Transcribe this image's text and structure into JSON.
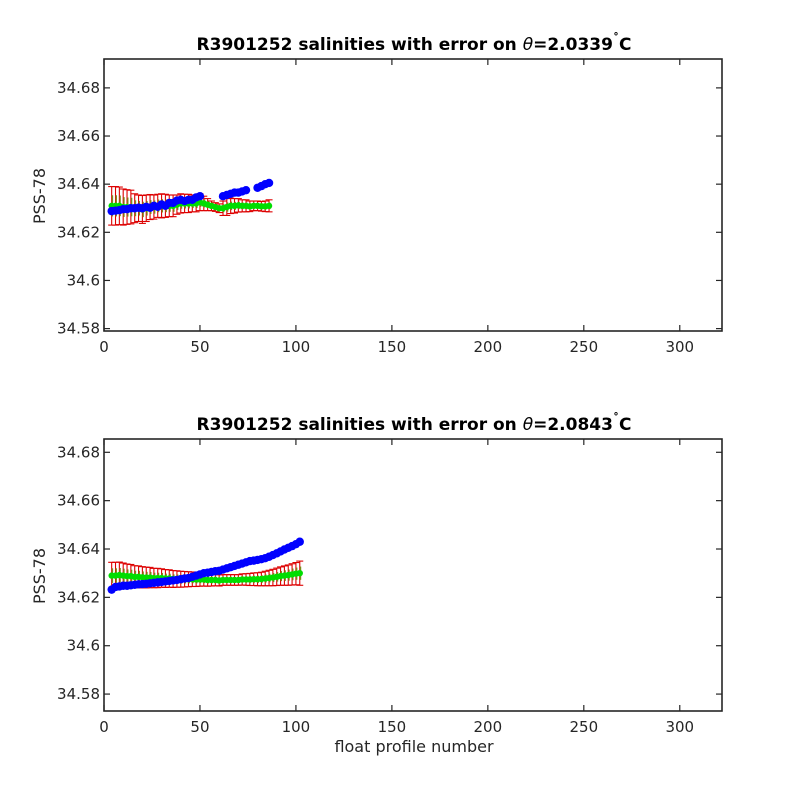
{
  "chart_data": [
    {
      "type": "scatter",
      "title": "R3901252 salinities with error on θ=2.0339˚C",
      "title_parts": {
        "prefix": "R3901252 salinities with error on ",
        "symbol": "θ",
        "value": "=2.0339",
        "degree": "˚",
        "unit": "C"
      },
      "ylabel": "PSS-78",
      "xlabel": "",
      "xlim": [
        0,
        322
      ],
      "ylim": [
        34.579,
        34.692
      ],
      "xticks": [
        0,
        50,
        100,
        150,
        200,
        250,
        300
      ],
      "xtick_labels": [
        "0",
        "50",
        "100",
        "150",
        "200",
        "250",
        "300"
      ],
      "yticks": [
        34.58,
        34.6,
        34.62,
        34.64,
        34.66,
        34.68
      ],
      "ytick_labels": [
        "34.58",
        "34.6",
        "34.62",
        "34.64",
        "34.66",
        "34.68"
      ],
      "colors": {
        "measured": "#0000ff",
        "mapped": "#00dd00",
        "error": "#dd0000",
        "error_inner": "#7a8c1a"
      },
      "series": [
        {
          "role": "measured",
          "x": [
            4,
            6,
            8,
            10,
            12,
            14,
            16,
            18,
            20,
            22,
            24,
            26,
            28,
            30,
            32,
            34,
            36,
            38,
            40,
            42,
            44,
            46,
            48,
            50,
            62,
            64,
            66,
            68,
            70,
            72,
            74,
            80,
            82,
            84,
            86
          ],
          "y": [
            34.6288,
            34.629,
            34.6292,
            34.6296,
            34.6296,
            34.63,
            34.63,
            34.6302,
            34.63,
            34.6306,
            34.6302,
            34.631,
            34.6306,
            34.6316,
            34.631,
            34.6322,
            34.6322,
            34.6332,
            34.6335,
            34.633,
            34.6335,
            34.6335,
            34.6345,
            34.635,
            34.635,
            34.6355,
            34.636,
            34.6365,
            34.6365,
            34.637,
            34.6375,
            34.6385,
            34.6392,
            34.64,
            34.6405
          ]
        },
        {
          "role": "mapped",
          "x": [
            4,
            6,
            8,
            10,
            12,
            14,
            16,
            18,
            20,
            22,
            24,
            26,
            28,
            30,
            32,
            34,
            36,
            38,
            40,
            42,
            44,
            46,
            48,
            50,
            52,
            54,
            56,
            58,
            60,
            62,
            64,
            66,
            68,
            70,
            72,
            74,
            76,
            78,
            80,
            82,
            84,
            86
          ],
          "y": [
            34.631,
            34.631,
            34.631,
            34.6305,
            34.6305,
            34.6305,
            34.63,
            34.63,
            34.6295,
            34.63,
            34.6305,
            34.6305,
            34.631,
            34.631,
            34.631,
            34.631,
            34.631,
            34.6315,
            34.632,
            34.632,
            34.632,
            34.632,
            34.632,
            34.6325,
            34.632,
            34.6315,
            34.631,
            34.6305,
            34.63,
            34.63,
            34.6305,
            34.631,
            34.631,
            34.6312,
            34.631,
            34.631,
            34.6308,
            34.631,
            34.631,
            34.6308,
            34.6308,
            34.631
          ],
          "err": [
            0.008,
            0.008,
            0.0078,
            0.0075,
            0.0072,
            0.007,
            0.006,
            0.0055,
            0.0058,
            0.0055,
            0.0052,
            0.005,
            0.0048,
            0.005,
            0.0048,
            0.0045,
            0.0045,
            0.004,
            0.004,
            0.0038,
            0.0038,
            0.0035,
            0.0035,
            0.0035,
            0.003,
            0.0025,
            0.002,
            0.0018,
            0.0018,
            0.003,
            0.0035,
            0.0032,
            0.003,
            0.0028,
            0.0025,
            0.0025,
            0.0022,
            0.002,
            0.002,
            0.002,
            0.0022,
            0.0025
          ]
        }
      ]
    },
    {
      "type": "scatter",
      "title": "R3901252 salinities with error on θ=2.0843˚C",
      "title_parts": {
        "prefix": "R3901252 salinities with error on ",
        "symbol": "θ",
        "value": "=2.0843",
        "degree": "˚",
        "unit": "C"
      },
      "ylabel": "PSS-78",
      "xlabel": "float profile number",
      "xlim": [
        0,
        322
      ],
      "ylim": [
        34.573,
        34.6855
      ],
      "xticks": [
        0,
        50,
        100,
        150,
        200,
        250,
        300
      ],
      "xtick_labels": [
        "0",
        "50",
        "100",
        "150",
        "200",
        "250",
        "300"
      ],
      "yticks": [
        34.58,
        34.6,
        34.62,
        34.64,
        34.66,
        34.68
      ],
      "ytick_labels": [
        "34.58",
        "34.6",
        "34.62",
        "34.64",
        "34.66",
        "34.68"
      ],
      "colors": {
        "measured": "#0000ff",
        "mapped": "#00dd00",
        "error": "#dd0000",
        "error_inner": "#7a8c1a"
      },
      "series": [
        {
          "role": "measured",
          "x": [
            4,
            6,
            8,
            10,
            12,
            14,
            16,
            18,
            20,
            22,
            24,
            26,
            28,
            30,
            32,
            34,
            36,
            38,
            40,
            42,
            44,
            46,
            48,
            50,
            52,
            54,
            56,
            58,
            60,
            62,
            64,
            66,
            68,
            70,
            72,
            74,
            76,
            78,
            80,
            82,
            84,
            86,
            88,
            90,
            92,
            94,
            96,
            98,
            100,
            102
          ],
          "y": [
            34.6232,
            34.6243,
            34.6245,
            34.6248,
            34.6248,
            34.625,
            34.6252,
            34.6254,
            34.6255,
            34.6256,
            34.6258,
            34.626,
            34.6262,
            34.6264,
            34.6266,
            34.6268,
            34.627,
            34.6272,
            34.6275,
            34.6278,
            34.628,
            34.6285,
            34.629,
            34.6295,
            34.63,
            34.6302,
            34.6305,
            34.6308,
            34.631,
            34.6315,
            34.632,
            34.6325,
            34.633,
            34.6335,
            34.634,
            34.6345,
            34.635,
            34.6352,
            34.6355,
            34.6358,
            34.6362,
            34.6368,
            34.6375,
            34.6382,
            34.639,
            34.6398,
            34.6405,
            34.6412,
            34.642,
            34.643
          ]
        },
        {
          "role": "mapped",
          "x": [
            4,
            6,
            8,
            10,
            12,
            14,
            16,
            18,
            20,
            22,
            24,
            26,
            28,
            30,
            32,
            34,
            36,
            38,
            40,
            42,
            44,
            46,
            48,
            50,
            52,
            54,
            56,
            58,
            60,
            62,
            64,
            66,
            68,
            70,
            72,
            74,
            76,
            78,
            80,
            82,
            84,
            86,
            88,
            90,
            92,
            94,
            96,
            98,
            100,
            102
          ],
          "y": [
            34.629,
            34.629,
            34.6292,
            34.629,
            34.6288,
            34.6288,
            34.6285,
            34.6285,
            34.6283,
            34.6282,
            34.6282,
            34.628,
            34.628,
            34.628,
            34.6278,
            34.6278,
            34.6276,
            34.6276,
            34.6275,
            34.6275,
            34.6275,
            34.6275,
            34.6274,
            34.6274,
            34.6274,
            34.6272,
            34.6272,
            34.6272,
            34.627,
            34.6272,
            34.6272,
            34.6272,
            34.6272,
            34.6272,
            34.6274,
            34.6274,
            34.6274,
            34.6275,
            34.6275,
            34.6276,
            34.6278,
            34.628,
            34.6282,
            34.6285,
            34.6288,
            34.629,
            34.6292,
            34.6295,
            34.6298,
            34.63
          ],
          "err": [
            0.0055,
            0.0055,
            0.0054,
            0.0052,
            0.005,
            0.0048,
            0.0046,
            0.0045,
            0.0044,
            0.0043,
            0.0042,
            0.004,
            0.004,
            0.0038,
            0.0037,
            0.0036,
            0.0035,
            0.0034,
            0.0033,
            0.0032,
            0.0031,
            0.003,
            0.0029,
            0.0028,
            0.0027,
            0.0026,
            0.0025,
            0.0024,
            0.0023,
            0.0022,
            0.0022,
            0.0022,
            0.0022,
            0.0022,
            0.0023,
            0.0024,
            0.0025,
            0.0026,
            0.0027,
            0.0028,
            0.003,
            0.0032,
            0.0034,
            0.0036,
            0.0038,
            0.004,
            0.0042,
            0.0044,
            0.0046,
            0.005
          ]
        }
      ]
    }
  ]
}
